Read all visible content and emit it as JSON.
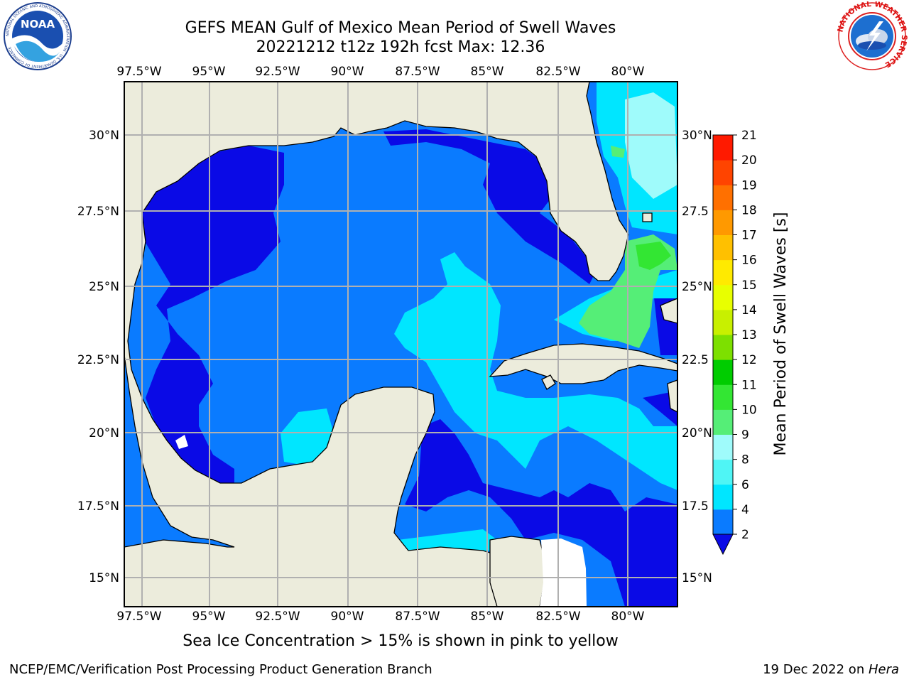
{
  "header": {
    "title_line1": "GEFS MEAN Gulf of Mexico Mean Period of Swell Waves",
    "title_line2": "20221212 t12z 192h fcst   Max: 12.36"
  },
  "map": {
    "lon_labels": [
      "97.5°W",
      "95°W",
      "92.5°W",
      "90°W",
      "87.5°W",
      "85°W",
      "82.5°W",
      "80°W"
    ],
    "lat_labels_left": [
      "30°N",
      "27.5°N",
      "25°N",
      "22.5°N",
      "20°N",
      "17.5°N",
      "15°N"
    ],
    "lat_labels_right": [
      "30°N",
      "27.5",
      "25°N",
      "22.5",
      "20°N",
      "17.5",
      "15°N"
    ]
  },
  "colorbar": {
    "label": "Mean Period of Swell Waves [s]",
    "ticks": [
      "2",
      "4",
      "6",
      "8",
      "9",
      "10",
      "11",
      "12",
      "13",
      "14",
      "15",
      "16",
      "17",
      "18",
      "19",
      "20",
      "21"
    ],
    "colors": [
      "#0a0ae6",
      "#0a7bff",
      "#00e6ff",
      "#4ff5f5",
      "#9ffbfb",
      "#55ee77",
      "#33e633",
      "#00cc00",
      "#7de000",
      "#c8f000",
      "#e8ff00",
      "#ffea00",
      "#ffc000",
      "#ff9900",
      "#ff7000",
      "#ff4400",
      "#ff1a00",
      "#f00000"
    ]
  },
  "caption": "Sea Ice Concentration > 15% is shown in pink to yellow",
  "footer": {
    "left": "NCEP/EMC/Verification Post Processing Product Generation Branch",
    "right_prefix": "19 Dec 2022 on ",
    "right_host": "Hera"
  },
  "logos": {
    "noaa_text": "NOAA",
    "noaa_ring_text": "NATIONAL OCEANIC AND ATMOSPHERIC ADMINISTRATION · U.S. DEPARTMENT OF COMMERCE",
    "nws_ring_text": "NATIONAL WEATHER SERVICE"
  }
}
